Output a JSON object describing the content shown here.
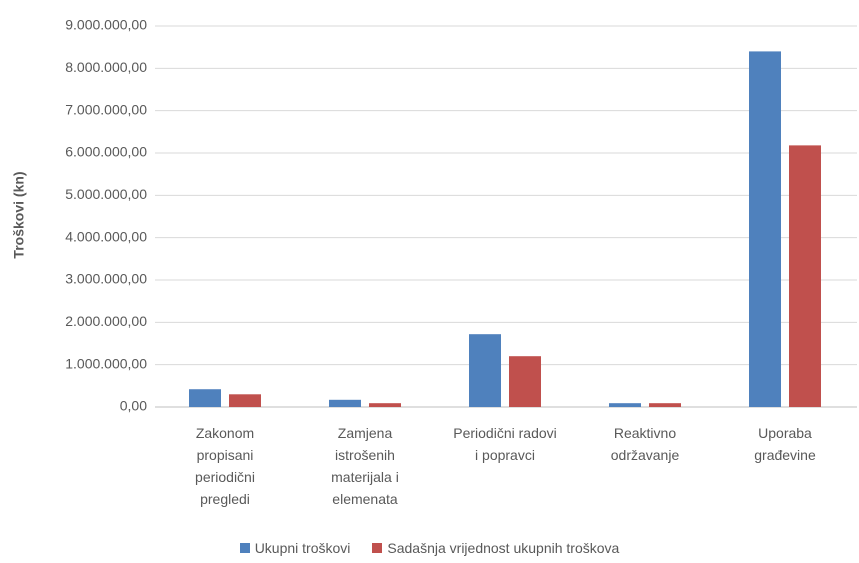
{
  "chart_data": {
    "type": "bar",
    "y_label": "Troškovi (kn)",
    "categories": [
      "Zakonom propisani periodični pregledi",
      "Zamjena istrošenih materijala i elemenata",
      "Periodični radovi i popravci",
      "Reaktivno održavanje",
      "Uporaba građevine"
    ],
    "series": [
      {
        "name": "Ukupni troškovi",
        "color": "#4f81bd",
        "values": [
          420000,
          170000,
          1720000,
          90000,
          8400000
        ]
      },
      {
        "name": "Sadašnja vrijednost ukupnih troškova",
        "color": "#c0504d",
        "values": [
          300000,
          90000,
          1200000,
          90000,
          6180000
        ]
      }
    ],
    "ylim": [
      0,
      9000000
    ],
    "yticks": [
      {
        "value": 0,
        "label": "0,00"
      },
      {
        "value": 1000000,
        "label": "1.000.000,00"
      },
      {
        "value": 2000000,
        "label": "2.000.000,00"
      },
      {
        "value": 3000000,
        "label": "3.000.000,00"
      },
      {
        "value": 4000000,
        "label": "4.000.000,00"
      },
      {
        "value": 5000000,
        "label": "5.000.000,00"
      },
      {
        "value": 6000000,
        "label": "6.000.000,00"
      },
      {
        "value": 7000000,
        "label": "7.000.000,00"
      },
      {
        "value": 8000000,
        "label": "8.000.000,00"
      },
      {
        "value": 9000000,
        "label": "9.000.000,00"
      }
    ],
    "grid": true
  }
}
